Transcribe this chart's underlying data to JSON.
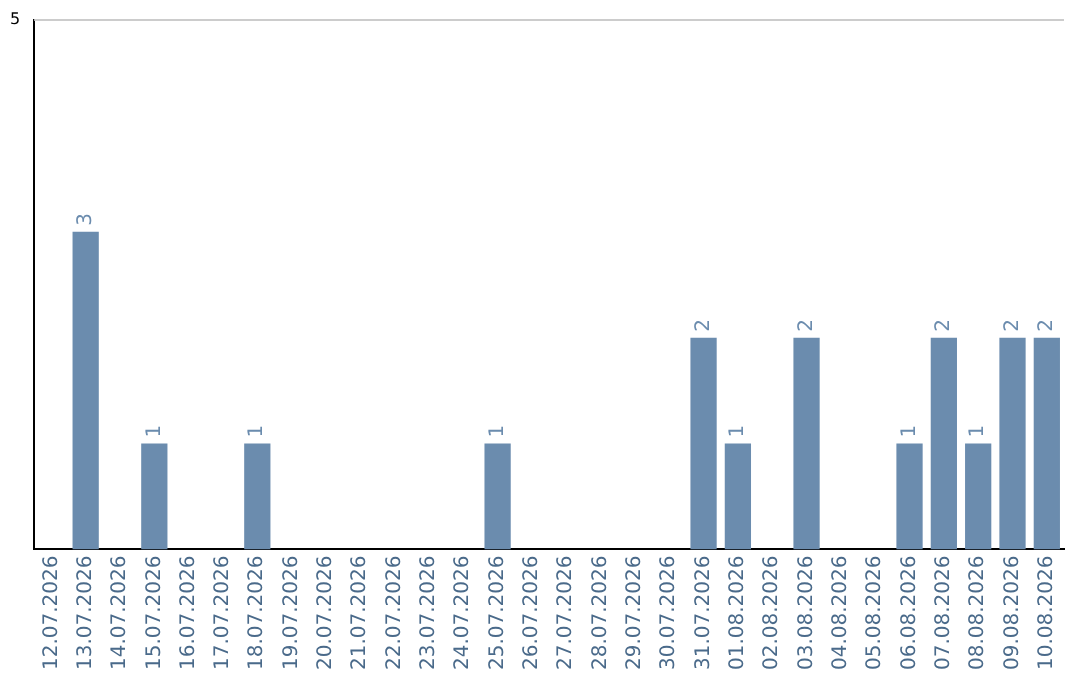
{
  "chart_data": {
    "type": "bar",
    "categories": [
      "12.07.2026",
      "13.07.2026",
      "14.07.2026",
      "15.07.2026",
      "16.07.2026",
      "17.07.2026",
      "18.07.2026",
      "19.07.2026",
      "20.07.2026",
      "21.07.2026",
      "22.07.2026",
      "23.07.2026",
      "24.07.2026",
      "25.07.2026",
      "26.07.2026",
      "27.07.2026",
      "28.07.2026",
      "29.07.2026",
      "30.07.2026",
      "31.07.2026",
      "01.08.2026",
      "02.08.2026",
      "03.08.2026",
      "04.08.2026",
      "05.08.2026",
      "06.08.2026",
      "07.08.2026",
      "08.08.2026",
      "09.08.2026",
      "10.08.2026"
    ],
    "values": [
      0,
      3,
      0,
      1,
      0,
      0,
      1,
      0,
      0,
      0,
      0,
      0,
      0,
      1,
      0,
      0,
      0,
      0,
      0,
      2,
      1,
      0,
      2,
      0,
      0,
      1,
      2,
      1,
      2,
      2
    ],
    "color": "#6b8cae",
    "value_labels": [
      null,
      "3",
      null,
      "1",
      null,
      null,
      "1",
      null,
      null,
      null,
      null,
      null,
      null,
      "1",
      null,
      null,
      null,
      null,
      null,
      "2",
      "1",
      null,
      "2",
      null,
      null,
      "1",
      "2",
      "1",
      "2",
      "2"
    ],
    "ylim": [
      0,
      5
    ],
    "yticks": [
      5
    ],
    "ref_lines": [
      {
        "axis": "y",
        "value": 5,
        "color": "#cccccc"
      }
    ],
    "legend": false
  }
}
